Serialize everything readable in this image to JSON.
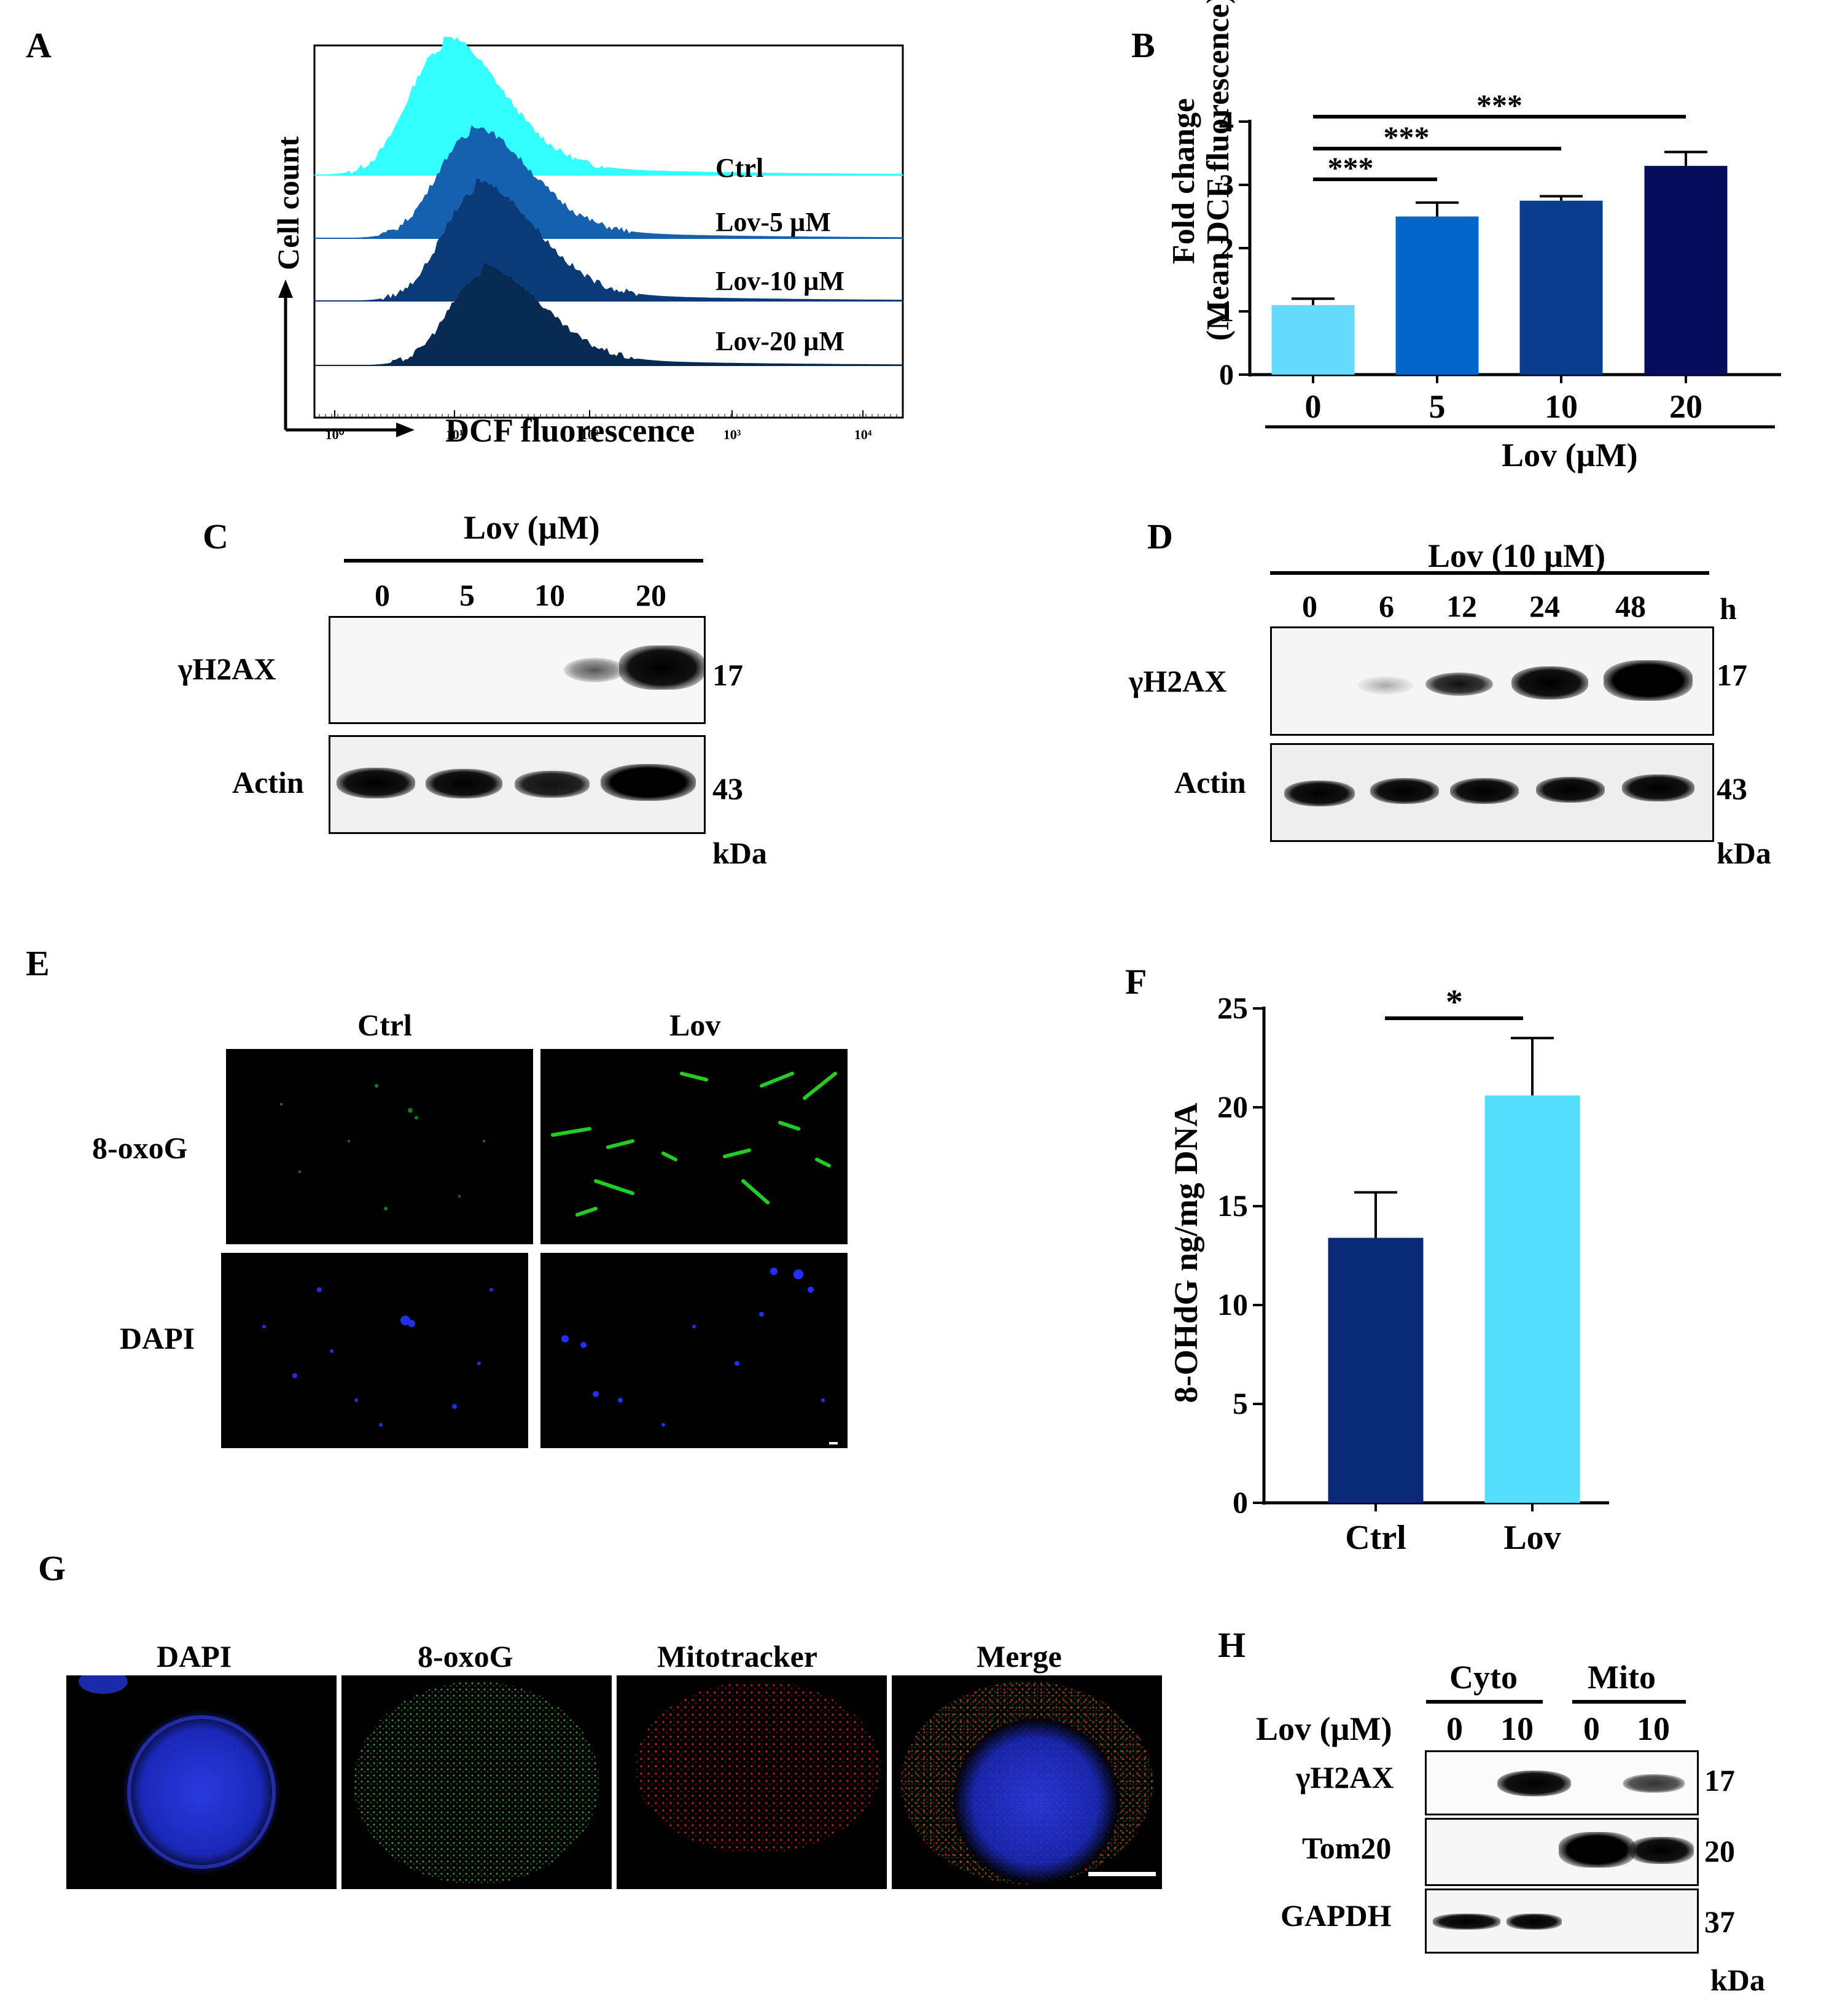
{
  "panels": {
    "A": {
      "letter": "A",
      "ylabel": "Cell count",
      "xlabel": "DCF fluorescence",
      "xticks": [
        "10⁰",
        "10¹",
        "10²",
        "10³",
        "10⁴"
      ],
      "traces": [
        {
          "label": "Ctrl",
          "color": "#33ffff"
        },
        {
          "label": "Lov-5 µM",
          "color": "#1660b0"
        },
        {
          "label": "Lov-10 µM",
          "color": "#0a3a78"
        },
        {
          "label": "Lov-20 µM",
          "color": "#062a52"
        }
      ]
    },
    "B": {
      "letter": "B",
      "sig": [
        "***",
        "***",
        "***"
      ],
      "group_label": "Lov (µM)"
    },
    "C": {
      "letter": "C",
      "header": "Lov (µM)",
      "lanes": [
        "0",
        "5",
        "10",
        "20"
      ],
      "rows": [
        {
          "label": "γH2AX",
          "kda": "17"
        },
        {
          "label": "Actin",
          "kda": "43"
        }
      ],
      "unit": "kDa"
    },
    "D": {
      "letter": "D",
      "header": "Lov (10 µM)",
      "lanes": [
        "0",
        "6",
        "12",
        "24",
        "48"
      ],
      "time_unit": "h",
      "rows": [
        {
          "label": "γH2AX",
          "kda": "17"
        },
        {
          "label": "Actin",
          "kda": "43"
        }
      ],
      "unit": "kDa"
    },
    "E": {
      "letter": "E",
      "cols": [
        "Ctrl",
        "Lov"
      ],
      "rows": [
        "8-oxoG",
        "DAPI"
      ]
    },
    "F": {
      "letter": "F",
      "sig": "*"
    },
    "G": {
      "letter": "G",
      "channels": [
        "DAPI",
        "8-oxoG",
        "Mitotracker",
        "Merge"
      ]
    },
    "H": {
      "letter": "H",
      "groups": [
        "Cyto",
        "Mito"
      ],
      "lov_label": "Lov (µM)",
      "lanes": [
        "0",
        "10",
        "0",
        "10"
      ],
      "rows": [
        {
          "label": "γH2AX",
          "kda": "17"
        },
        {
          "label": "Tom20",
          "kda": "20"
        },
        {
          "label": "GAPDH",
          "kda": "37"
        }
      ],
      "unit": "kDa"
    }
  },
  "chart_data": [
    {
      "panel": "B",
      "type": "bar",
      "categories": [
        "0",
        "5",
        "10",
        "20"
      ],
      "values": [
        1.1,
        2.5,
        2.75,
        3.3
      ],
      "errors": [
        0.1,
        0.22,
        0.07,
        0.22
      ],
      "colors": [
        "#66d9ff",
        "#0066cc",
        "#0a3d8f",
        "#060d5c"
      ],
      "ylabel": "Fold change (Mean DCF fluorescence)",
      "xlabel": "Lov (µM)",
      "ylim": [
        0,
        4
      ],
      "yticks": [
        0,
        1,
        2,
        3,
        4
      ]
    },
    {
      "panel": "F",
      "type": "bar",
      "categories": [
        "Ctrl",
        "Lov"
      ],
      "values": [
        13.4,
        20.6
      ],
      "errors": [
        2.3,
        2.9
      ],
      "colors": [
        "#0a2a78",
        "#55dfff"
      ],
      "ylabel": "8-OHdG ng/mg DNA",
      "ylim": [
        0,
        25
      ],
      "yticks": [
        0,
        5,
        10,
        15,
        20,
        25
      ]
    }
  ]
}
